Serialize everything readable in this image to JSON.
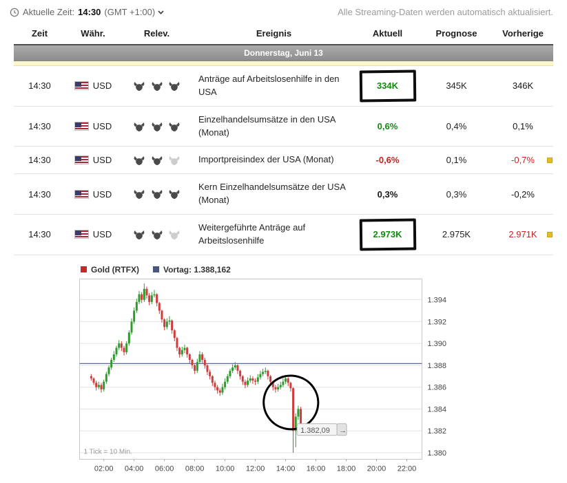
{
  "topbar": {
    "time_label": "Aktuelle Zeit:",
    "time": "14:30",
    "timezone": "(GMT +1:00)",
    "streaming_note": "Alle Streaming-Daten werden automatisch aktualisiert."
  },
  "calendar": {
    "columns": [
      "Zeit",
      "Währ.",
      "Relev.",
      "Ereignis",
      "Aktuell",
      "Prognose",
      "Vorherige"
    ],
    "day_header": "Donnerstag, Juni 13",
    "rows": [
      {
        "time": "14:30",
        "currency": "USD",
        "relevance": 3,
        "event": "Anträge auf Arbeitslosenhilfe in den USA",
        "actual": "334K",
        "actual_tone": "pos",
        "actual_circled": true,
        "forecast": "345K",
        "previous": "346K",
        "previous_tone": "neu",
        "revised_flag": false
      },
      {
        "time": "14:30",
        "currency": "USD",
        "relevance": 3,
        "event": "Einzelhandelsumsätze in den USA (Monat)",
        "actual": "0,6%",
        "actual_tone": "pos",
        "actual_circled": false,
        "forecast": "0,4%",
        "previous": "0,1%",
        "previous_tone": "neu",
        "revised_flag": false
      },
      {
        "time": "14:30",
        "currency": "USD",
        "relevance": 2,
        "event": "Importpreisindex der USA (Monat)",
        "actual": "-0,6%",
        "actual_tone": "neg",
        "actual_circled": false,
        "forecast": "0,1%",
        "previous": "-0,7%",
        "previous_tone": "neg",
        "revised_flag": true
      },
      {
        "time": "14:30",
        "currency": "USD",
        "relevance": 3,
        "event": "Kern Einzelhandelsumsätze der USA (Monat)",
        "actual": "0,3%",
        "actual_tone": "neu",
        "actual_circled": false,
        "forecast": "0,3%",
        "previous": "-0,2%",
        "previous_tone": "neu",
        "revised_flag": false
      },
      {
        "time": "14:30",
        "currency": "USD",
        "relevance": 2,
        "event": "Weitergeführte Anträge auf Arbeitslosenhilfe",
        "actual": "2.973K",
        "actual_tone": "pos",
        "actual_circled": true,
        "forecast": "2.975K",
        "previous": "2.971K",
        "previous_tone": "neg",
        "revised_flag": true
      }
    ]
  },
  "chart": {
    "legend": [
      {
        "label": "Gold (RTFX)",
        "color": "#c32a2a"
      },
      {
        "label": "Vortag: 1.388,162",
        "color": "#49587a"
      }
    ],
    "tick_note": "1 Tick = 10 Min.",
    "price_tag": "1.382,09"
  },
  "chart_data": {
    "type": "candlestick",
    "title": "Gold (RTFX)",
    "prev_close": 1388.162,
    "prev_close_label": "Vortag: 1.388,162",
    "x_start_hour": 1.1667,
    "step_minutes": 10,
    "x_domain_hours": [
      0.4,
      23.0
    ],
    "x_ticks": [
      "02:00",
      "04:00",
      "06:00",
      "08:00",
      "10:00",
      "12:00",
      "14:00",
      "16:00",
      "18:00",
      "20:00",
      "22:00"
    ],
    "x_tick_hours": [
      2,
      4,
      6,
      8,
      10,
      12,
      14,
      16,
      18,
      20,
      22
    ],
    "ylim": [
      1379.4,
      1395.9
    ],
    "y_ticks": [
      1394,
      1392,
      1390,
      1388,
      1386,
      1384,
      1382,
      1380
    ],
    "y_tick_labels": [
      "1.394",
      "1.392",
      "1.390",
      "1.388",
      "1.386",
      "1.384",
      "1.382",
      "1.380"
    ],
    "up_color": "#2f9b2f",
    "down_color": "#d03b3b",
    "prev_close_line_color": "#5a689b",
    "ohlc_format": "[open, high, low, close]",
    "candles_ohlc": [
      [
        1387.0,
        1387.2,
        1386.6,
        1386.8
      ],
      [
        1386.8,
        1386.9,
        1386.2,
        1386.4
      ],
      [
        1386.4,
        1386.6,
        1385.7,
        1386.0
      ],
      [
        1386.0,
        1386.5,
        1385.8,
        1386.2
      ],
      [
        1386.2,
        1386.4,
        1385.5,
        1385.8
      ],
      [
        1385.8,
        1386.7,
        1385.6,
        1386.5
      ],
      [
        1386.5,
        1387.4,
        1386.3,
        1387.2
      ],
      [
        1387.2,
        1388.0,
        1387.0,
        1387.8
      ],
      [
        1387.8,
        1388.7,
        1387.6,
        1388.5
      ],
      [
        1388.5,
        1389.3,
        1388.3,
        1389.0
      ],
      [
        1389.0,
        1389.8,
        1388.8,
        1389.6
      ],
      [
        1389.6,
        1390.3,
        1389.4,
        1390.0
      ],
      [
        1390.0,
        1390.2,
        1389.3,
        1389.6
      ],
      [
        1389.6,
        1389.8,
        1388.9,
        1389.2
      ],
      [
        1389.2,
        1390.2,
        1389.0,
        1390.0
      ],
      [
        1390.0,
        1391.2,
        1389.8,
        1391.0
      ],
      [
        1391.0,
        1392.3,
        1390.8,
        1392.0
      ],
      [
        1392.0,
        1393.3,
        1391.8,
        1393.0
      ],
      [
        1393.0,
        1394.1,
        1392.8,
        1393.8
      ],
      [
        1393.8,
        1394.8,
        1393.6,
        1394.5
      ],
      [
        1394.5,
        1394.7,
        1393.7,
        1394.0
      ],
      [
        1394.0,
        1395.5,
        1393.8,
        1395.0
      ],
      [
        1395.0,
        1395.2,
        1394.1,
        1394.4
      ],
      [
        1394.4,
        1394.6,
        1393.5,
        1393.8
      ],
      [
        1393.8,
        1394.7,
        1393.6,
        1394.4
      ],
      [
        1394.4,
        1394.9,
        1394.2,
        1394.5
      ],
      [
        1394.5,
        1394.6,
        1393.4,
        1393.7
      ],
      [
        1393.7,
        1393.8,
        1392.7,
        1393.0
      ],
      [
        1393.0,
        1393.1,
        1391.9,
        1392.2
      ],
      [
        1392.2,
        1392.3,
        1391.2,
        1391.5
      ],
      [
        1391.5,
        1392.3,
        1391.3,
        1392.0
      ],
      [
        1392.0,
        1392.5,
        1391.7,
        1392.1
      ],
      [
        1392.1,
        1392.2,
        1390.9,
        1391.2
      ],
      [
        1391.2,
        1391.3,
        1390.2,
        1390.5
      ],
      [
        1390.5,
        1390.6,
        1389.3,
        1389.6
      ],
      [
        1389.6,
        1389.7,
        1388.7,
        1389.0
      ],
      [
        1389.0,
        1389.7,
        1388.8,
        1389.4
      ],
      [
        1389.4,
        1389.9,
        1389.1,
        1389.6
      ],
      [
        1389.6,
        1389.7,
        1388.7,
        1389.0
      ],
      [
        1389.0,
        1389.1,
        1388.2,
        1388.5
      ],
      [
        1388.5,
        1388.6,
        1387.7,
        1388.0
      ],
      [
        1388.0,
        1388.1,
        1387.2,
        1387.5
      ],
      [
        1387.5,
        1388.6,
        1387.3,
        1388.3
      ],
      [
        1388.3,
        1389.3,
        1388.1,
        1389.0
      ],
      [
        1389.0,
        1389.2,
        1388.2,
        1388.5
      ],
      [
        1388.5,
        1388.7,
        1387.7,
        1388.0
      ],
      [
        1388.0,
        1388.1,
        1387.1,
        1387.4
      ],
      [
        1387.4,
        1387.6,
        1386.7,
        1387.0
      ],
      [
        1387.0,
        1387.1,
        1386.1,
        1386.4
      ],
      [
        1386.4,
        1386.6,
        1385.7,
        1386.0
      ],
      [
        1386.0,
        1386.2,
        1385.4,
        1385.7
      ],
      [
        1385.7,
        1385.9,
        1385.2,
        1385.5
      ],
      [
        1385.5,
        1386.3,
        1385.3,
        1386.0
      ],
      [
        1386.0,
        1386.8,
        1385.8,
        1386.5
      ],
      [
        1386.5,
        1387.2,
        1386.3,
        1387.0
      ],
      [
        1387.0,
        1387.7,
        1386.8,
        1387.5
      ],
      [
        1387.5,
        1388.1,
        1387.3,
        1387.8
      ],
      [
        1387.8,
        1388.3,
        1387.6,
        1388.0
      ],
      [
        1388.0,
        1388.1,
        1387.2,
        1387.5
      ],
      [
        1387.5,
        1387.6,
        1386.7,
        1387.0
      ],
      [
        1387.0,
        1387.1,
        1386.2,
        1386.5
      ],
      [
        1386.5,
        1386.7,
        1385.9,
        1386.2
      ],
      [
        1386.2,
        1386.9,
        1386.0,
        1386.6
      ],
      [
        1386.6,
        1387.1,
        1386.4,
        1386.8
      ],
      [
        1386.8,
        1387.0,
        1386.3,
        1386.6
      ],
      [
        1386.6,
        1386.8,
        1386.2,
        1386.5
      ],
      [
        1386.5,
        1387.2,
        1386.3,
        1386.9
      ],
      [
        1386.9,
        1387.5,
        1386.7,
        1387.2
      ],
      [
        1387.2,
        1387.7,
        1387.0,
        1387.4
      ],
      [
        1387.4,
        1387.8,
        1387.2,
        1387.5
      ],
      [
        1387.5,
        1387.6,
        1386.7,
        1387.0
      ],
      [
        1387.0,
        1387.1,
        1386.2,
        1386.5
      ],
      [
        1386.5,
        1386.6,
        1385.7,
        1386.0
      ],
      [
        1386.0,
        1386.2,
        1385.5,
        1385.8
      ],
      [
        1385.8,
        1386.3,
        1385.6,
        1386.0
      ],
      [
        1386.0,
        1386.5,
        1385.8,
        1386.2
      ],
      [
        1386.2,
        1386.8,
        1386.0,
        1386.5
      ],
      [
        1386.5,
        1387.1,
        1386.3,
        1386.8
      ],
      [
        1386.8,
        1386.9,
        1386.1,
        1386.4
      ],
      [
        1386.4,
        1386.5,
        1385.6,
        1385.9
      ],
      [
        1385.9,
        1386.0,
        1380.0,
        1382.0
      ],
      [
        1382.0,
        1383.6,
        1380.5,
        1383.3
      ],
      [
        1383.3,
        1384.3,
        1383.0,
        1384.0
      ],
      [
        1384.0,
        1384.2,
        1382.0,
        1382.1
      ]
    ],
    "annotations": {
      "ellipse": {
        "t": 14.35,
        "price": 1384.6,
        "rx_hours": 1.2,
        "ry_points": 2.45
      },
      "price_label": {
        "t": 14.75,
        "price": 1382.09,
        "text": "1.382,09"
      }
    }
  }
}
